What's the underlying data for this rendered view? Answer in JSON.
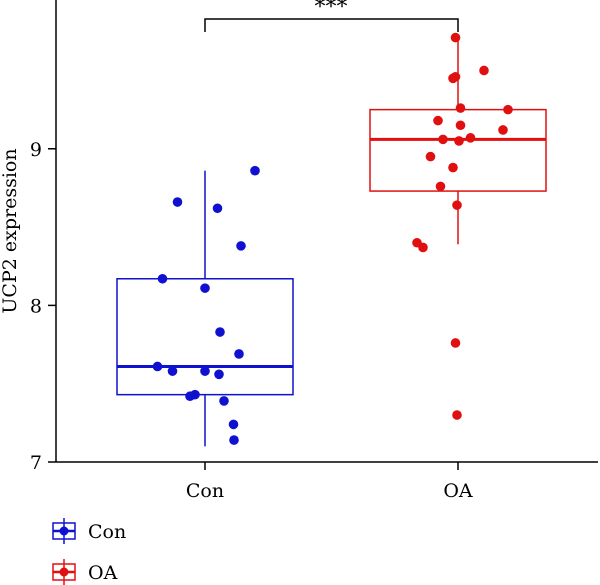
{
  "chart_data": {
    "type": "box",
    "title": "",
    "xlabel": "",
    "ylabel": "UCP2 expression",
    "ylim": [
      7,
      9.95
    ],
    "yticks": [
      7,
      8,
      9
    ],
    "categories": [
      "Con",
      "OA"
    ],
    "significance": {
      "between": [
        "Con",
        "OA"
      ],
      "label": "***"
    },
    "legend": {
      "placement": "bottom-left",
      "entries": [
        "Con",
        "OA"
      ]
    },
    "series": [
      {
        "name": "Con",
        "color": "#1010d0",
        "box": {
          "whisker_low": 7.1,
          "q1": 7.43,
          "median": 7.61,
          "q3": 8.17,
          "whisker_high": 8.86
        },
        "points": [
          {
            "jitter": 1.0,
            "y": 8.86
          },
          {
            "jitter": -0.55,
            "y": 8.66
          },
          {
            "jitter": 0.25,
            "y": 8.62
          },
          {
            "jitter": 0.72,
            "y": 8.38
          },
          {
            "jitter": -0.85,
            "y": 8.17
          },
          {
            "jitter": 0.0,
            "y": 8.11
          },
          {
            "jitter": 0.3,
            "y": 7.83
          },
          {
            "jitter": 0.68,
            "y": 7.69
          },
          {
            "jitter": -0.95,
            "y": 7.61
          },
          {
            "jitter": -0.65,
            "y": 7.58
          },
          {
            "jitter": 0.0,
            "y": 7.58
          },
          {
            "jitter": 0.28,
            "y": 7.56
          },
          {
            "jitter": -0.2,
            "y": 7.43
          },
          {
            "jitter": -0.3,
            "y": 7.42
          },
          {
            "jitter": 0.38,
            "y": 7.39
          },
          {
            "jitter": 0.57,
            "y": 7.24
          },
          {
            "jitter": 0.58,
            "y": 7.14
          }
        ]
      },
      {
        "name": "OA",
        "color": "#e01010",
        "box": {
          "whisker_low": 8.39,
          "q1": 8.73,
          "median": 9.06,
          "q3": 9.25,
          "whisker_high": 9.71
        },
        "points": [
          {
            "jitter": -0.05,
            "y": 9.71
          },
          {
            "jitter": 0.52,
            "y": 9.5
          },
          {
            "jitter": -0.05,
            "y": 9.46
          },
          {
            "jitter": -0.1,
            "y": 9.45
          },
          {
            "jitter": 0.05,
            "y": 9.26
          },
          {
            "jitter": 1.0,
            "y": 9.25
          },
          {
            "jitter": -0.4,
            "y": 9.18
          },
          {
            "jitter": 0.05,
            "y": 9.15
          },
          {
            "jitter": 0.9,
            "y": 9.12
          },
          {
            "jitter": 0.25,
            "y": 9.07
          },
          {
            "jitter": -0.3,
            "y": 9.06
          },
          {
            "jitter": 0.02,
            "y": 9.05
          },
          {
            "jitter": -0.55,
            "y": 8.95
          },
          {
            "jitter": -0.1,
            "y": 8.88
          },
          {
            "jitter": -0.35,
            "y": 8.76
          },
          {
            "jitter": -0.02,
            "y": 8.64
          },
          {
            "jitter": -0.82,
            "y": 8.4
          },
          {
            "jitter": -0.7,
            "y": 8.37
          },
          {
            "jitter": -0.05,
            "y": 7.76
          },
          {
            "jitter": -0.02,
            "y": 7.3
          }
        ]
      }
    ]
  }
}
